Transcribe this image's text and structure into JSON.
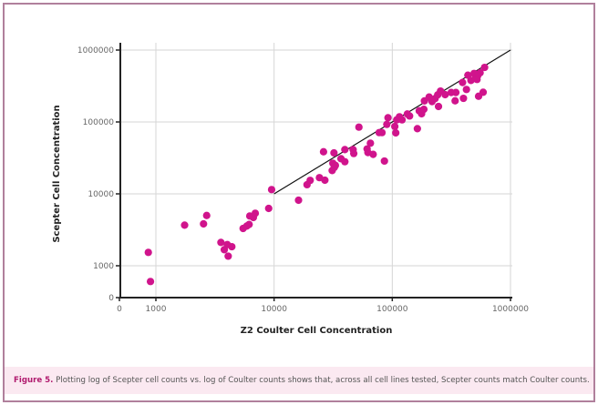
{
  "chart_data": {
    "type": "scatter",
    "xlabel": "Z2 Coulter Cell Concentration",
    "ylabel": "Scepter Cell Concentration",
    "x_scale": "log",
    "y_scale": "log",
    "xlim": [
      0,
      1000000
    ],
    "ylim": [
      0,
      1000000
    ],
    "x_ticks": [
      "0",
      "1000",
      "10000",
      "100000",
      "1000000"
    ],
    "y_ticks": [
      "0",
      "1000",
      "10000",
      "100000",
      "1000000"
    ],
    "grid": true,
    "point_color": "#d0148c",
    "reference_line": {
      "from": [
        10000,
        10000
      ],
      "to": [
        1000000,
        1000000
      ],
      "color": "#111111"
    },
    "points": [
      [
        863,
        1535
      ],
      [
        900,
        604
      ],
      [
        1750,
        3670
      ],
      [
        2530,
        3820
      ],
      [
        2690,
        5010
      ],
      [
        3550,
        2110
      ],
      [
        4020,
        1970
      ],
      [
        3790,
        1670
      ],
      [
        4390,
        1840
      ],
      [
        4090,
        1360
      ],
      [
        5470,
        3300
      ],
      [
        5870,
        3570
      ],
      [
        6150,
        3750
      ],
      [
        6230,
        4920
      ],
      [
        6680,
        4690
      ],
      [
        6930,
        5370
      ],
      [
        9000,
        6270
      ],
      [
        9530,
        11460
      ],
      [
        16100,
        8150
      ],
      [
        19000,
        13400
      ],
      [
        20200,
        15400
      ],
      [
        24200,
        16800
      ],
      [
        26900,
        15500
      ],
      [
        26200,
        38500
      ],
      [
        31000,
        21100
      ],
      [
        32300,
        23300
      ],
      [
        31400,
        26700
      ],
      [
        33000,
        24900
      ],
      [
        32100,
        37100
      ],
      [
        36800,
        30800
      ],
      [
        39700,
        28000
      ],
      [
        39700,
        41300
      ],
      [
        46600,
        41300
      ],
      [
        47200,
        36400
      ],
      [
        52200,
        84700
      ],
      [
        61200,
        42100
      ],
      [
        62200,
        37500
      ],
      [
        65300,
        50700
      ],
      [
        68900,
        35400
      ],
      [
        77500,
        71100
      ],
      [
        81800,
        71100
      ],
      [
        85800,
        28600
      ],
      [
        89900,
        92500
      ],
      [
        92000,
        114500
      ],
      [
        105000,
        86500
      ],
      [
        107000,
        70500
      ],
      [
        109000,
        107000
      ],
      [
        115000,
        118000
      ],
      [
        121000,
        107000
      ],
      [
        134000,
        129000
      ],
      [
        140000,
        121000
      ],
      [
        163000,
        80700
      ],
      [
        169000,
        143000
      ],
      [
        177000,
        130000
      ],
      [
        185000,
        150000
      ],
      [
        187000,
        196000
      ],
      [
        205000,
        222000
      ],
      [
        217000,
        192000
      ],
      [
        230000,
        211000
      ],
      [
        246000,
        164000
      ],
      [
        242000,
        238000
      ],
      [
        256000,
        269000
      ],
      [
        280000,
        240000
      ],
      [
        315000,
        257000
      ],
      [
        345000,
        257000
      ],
      [
        340000,
        197000
      ],
      [
        393000,
        354000
      ],
      [
        400000,
        213000
      ],
      [
        424000,
        283000
      ],
      [
        436000,
        447000
      ],
      [
        463000,
        378000
      ],
      [
        492000,
        473000
      ],
      [
        506000,
        405000
      ],
      [
        527000,
        438000
      ],
      [
        553000,
        483000
      ],
      [
        521000,
        390000
      ],
      [
        537000,
        228000
      ],
      [
        587000,
        259000
      ],
      [
        604000,
        574000
      ]
    ]
  },
  "caption": {
    "label": "Figure 5.",
    "text": " Plotting log of Scepter cell counts vs. log of Coulter counts shows that, across all cell lines tested, Scepter counts match Coulter counts."
  },
  "colors": {
    "frame": "#b0809c",
    "caption_bg": "#fbe9f1",
    "caption_label": "#b01a6e"
  }
}
